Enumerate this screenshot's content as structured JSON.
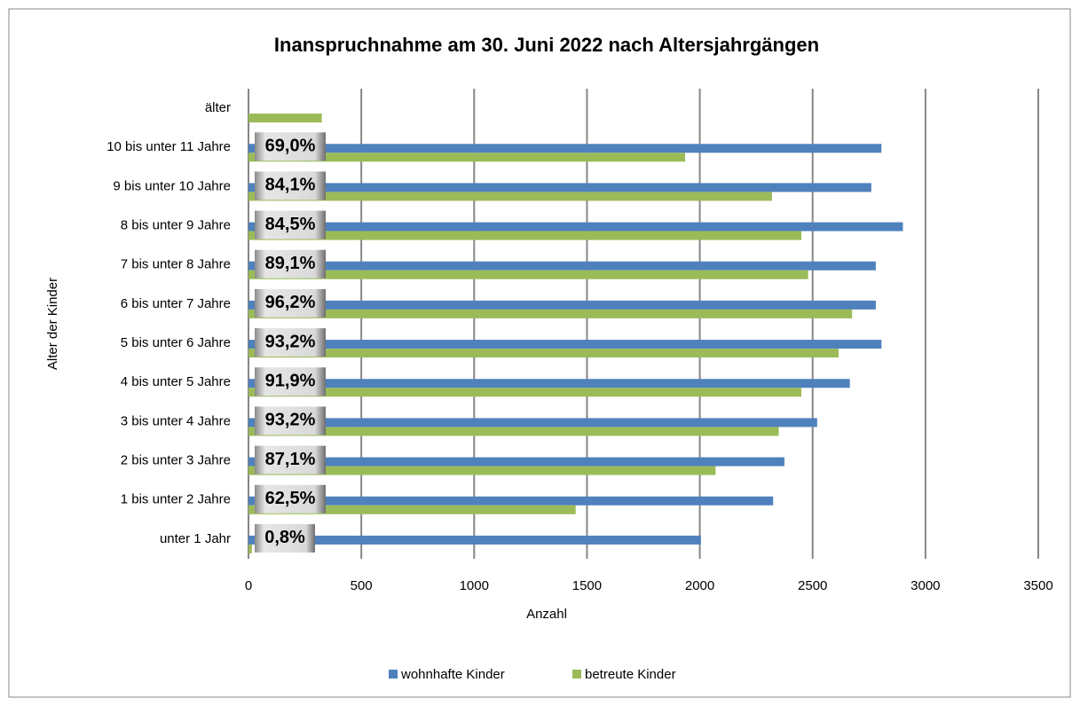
{
  "chart_data": {
    "type": "bar",
    "orientation": "horizontal",
    "title": "Inanspruchnahme am 30. Juni 2022 nach Altersjahrgängen",
    "x_label": "Anzahl",
    "y_label": "Alter der Kinder",
    "categories": [
      "unter 1 Jahr",
      "1 bis unter 2 Jahre",
      "2 bis unter 3 Jahre",
      "3 bis unter 4 Jahre",
      "4 bis unter 5 Jahre",
      "5 bis unter 6 Jahre",
      "6 bis unter 7 Jahre",
      "7 bis unter 8 Jahre",
      "8 bis unter 9 Jahre",
      "9 bis unter 10 Jahre ",
      "10 bis unter 11 Jahre",
      "älter"
    ],
    "series": [
      {
        "name": "wohnhafte Kinder",
        "color": "#4f81bd",
        "values": [
          2005,
          2325,
          2375,
          2520,
          2665,
          2805,
          2780,
          2780,
          2900,
          2760,
          2805,
          null
        ]
      },
      {
        "name": "betreute Kinder",
        "color": "#9bbb59",
        "values": [
          15,
          1450,
          2070,
          2350,
          2450,
          2615,
          2675,
          2480,
          2450,
          2320,
          1935,
          325
        ]
      }
    ],
    "rates": {
      "values": [
        0.8,
        62.5,
        87.1,
        93.2,
        91.9,
        93.2,
        96.2,
        89.1,
        84.5,
        84.1,
        69.0,
        null
      ],
      "value_labels": [
        "0,8%",
        "62,5%",
        "87,1%",
        "93,2%",
        "91,9%",
        "93,2%",
        "96,2%",
        "89,1%",
        "84,5%",
        "84,1%",
        "69,0%",
        null
      ]
    },
    "xlim": [
      0,
      3500
    ],
    "xticks": [
      0,
      500,
      1000,
      1500,
      2000,
      2500,
      3000,
      3500
    ],
    "grid": true,
    "legend": "bottom"
  }
}
